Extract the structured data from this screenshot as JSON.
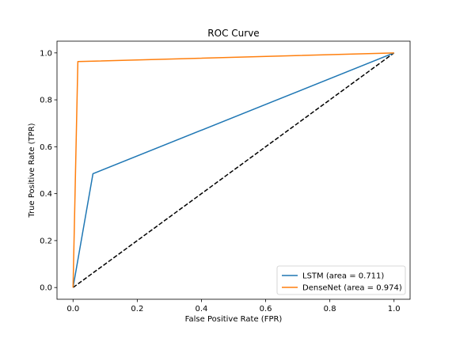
{
  "chart_data": {
    "type": "line",
    "title": "ROC Curve",
    "xlabel": "False Positive Rate (FPR)",
    "ylabel": "True Positive Rate (TPR)",
    "xlim": [
      -0.05,
      1.05
    ],
    "ylim": [
      -0.05,
      1.05
    ],
    "xticks": [
      0.0,
      0.2,
      0.4,
      0.6,
      0.8,
      1.0
    ],
    "yticks": [
      0.0,
      0.2,
      0.4,
      0.6,
      0.8,
      1.0
    ],
    "xtick_labels": [
      "0.0",
      "0.2",
      "0.4",
      "0.6",
      "0.8",
      "1.0"
    ],
    "ytick_labels": [
      "0.0",
      "0.2",
      "0.4",
      "0.6",
      "0.8",
      "1.0"
    ],
    "grid": false,
    "legend_position": "lower-right",
    "series": [
      {
        "name": "LSTM (area = 0.711)",
        "color": "#1f77b4",
        "x": [
          0.0,
          0.062,
          1.0
        ],
        "y": [
          0.0,
          0.485,
          1.0
        ]
      },
      {
        "name": "DenseNet (area = 0.974)",
        "color": "#ff7f0e",
        "x": [
          0.0,
          0.015,
          1.0
        ],
        "y": [
          0.0,
          0.963,
          1.0
        ]
      }
    ],
    "reference_line": {
      "style": "dashed",
      "color": "#000000",
      "x": [
        0.0,
        1.0
      ],
      "y": [
        0.0,
        1.0
      ]
    }
  }
}
